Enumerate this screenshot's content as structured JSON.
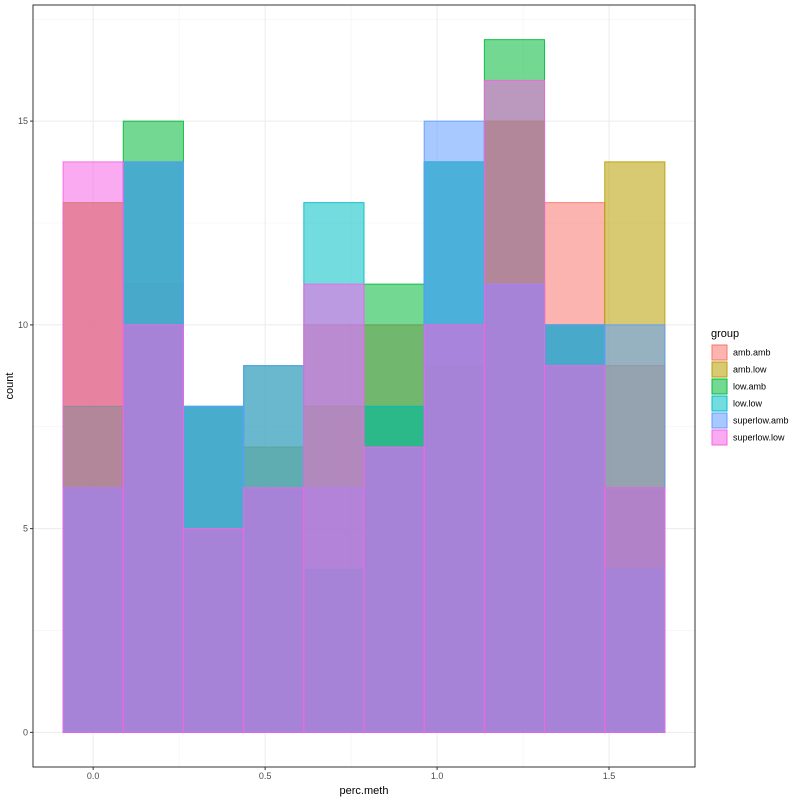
{
  "chart_data": {
    "type": "bar",
    "subtype": "overlaid-histogram",
    "title": "",
    "xlabel": "perc.meth",
    "ylabel": "count",
    "xlim": [
      -0.175,
      1.75
    ],
    "ylim": [
      -0.85,
      17.85
    ],
    "bin_width": 0.175,
    "x_ticks": [
      0.0,
      0.5,
      1.0,
      1.5
    ],
    "x_tick_labels": [
      "0.0",
      "0.5",
      "1.0",
      "1.5"
    ],
    "y_ticks": [
      0,
      5,
      10,
      15
    ],
    "y_tick_labels": [
      "0",
      "5",
      "10",
      "15"
    ],
    "grid": true,
    "legend_title": "group",
    "legend_position": "right",
    "bin_centers": [
      0.0,
      0.175,
      0.35,
      0.525,
      0.7,
      0.875,
      1.05,
      1.225,
      1.4,
      1.575
    ],
    "series": [
      {
        "name": "amb.amb",
        "color": "#F8766D",
        "values": [
          13,
          11,
          5,
          6,
          10,
          10,
          10,
          15,
          13,
          9
        ]
      },
      {
        "name": "amb.low",
        "color": "#B79F00",
        "values": [
          13,
          14,
          8,
          7,
          8,
          8,
          9,
          15,
          10,
          14
        ]
      },
      {
        "name": "low.amb",
        "color": "#00BA38",
        "values": [
          8,
          15,
          8,
          9,
          4,
          11,
          14,
          17,
          10,
          6
        ]
      },
      {
        "name": "low.low",
        "color": "#00BFC4",
        "values": [
          6,
          14,
          8,
          6,
          13,
          8,
          14,
          11,
          10,
          4
        ]
      },
      {
        "name": "superlow.amb",
        "color": "#619CFF",
        "values": [
          6,
          14,
          8,
          9,
          6,
          7,
          15,
          11,
          10,
          10
        ]
      },
      {
        "name": "superlow.low",
        "color": "#F564E3",
        "values": [
          14,
          10,
          5,
          6,
          11,
          7,
          10,
          16,
          9,
          6
        ]
      }
    ]
  }
}
